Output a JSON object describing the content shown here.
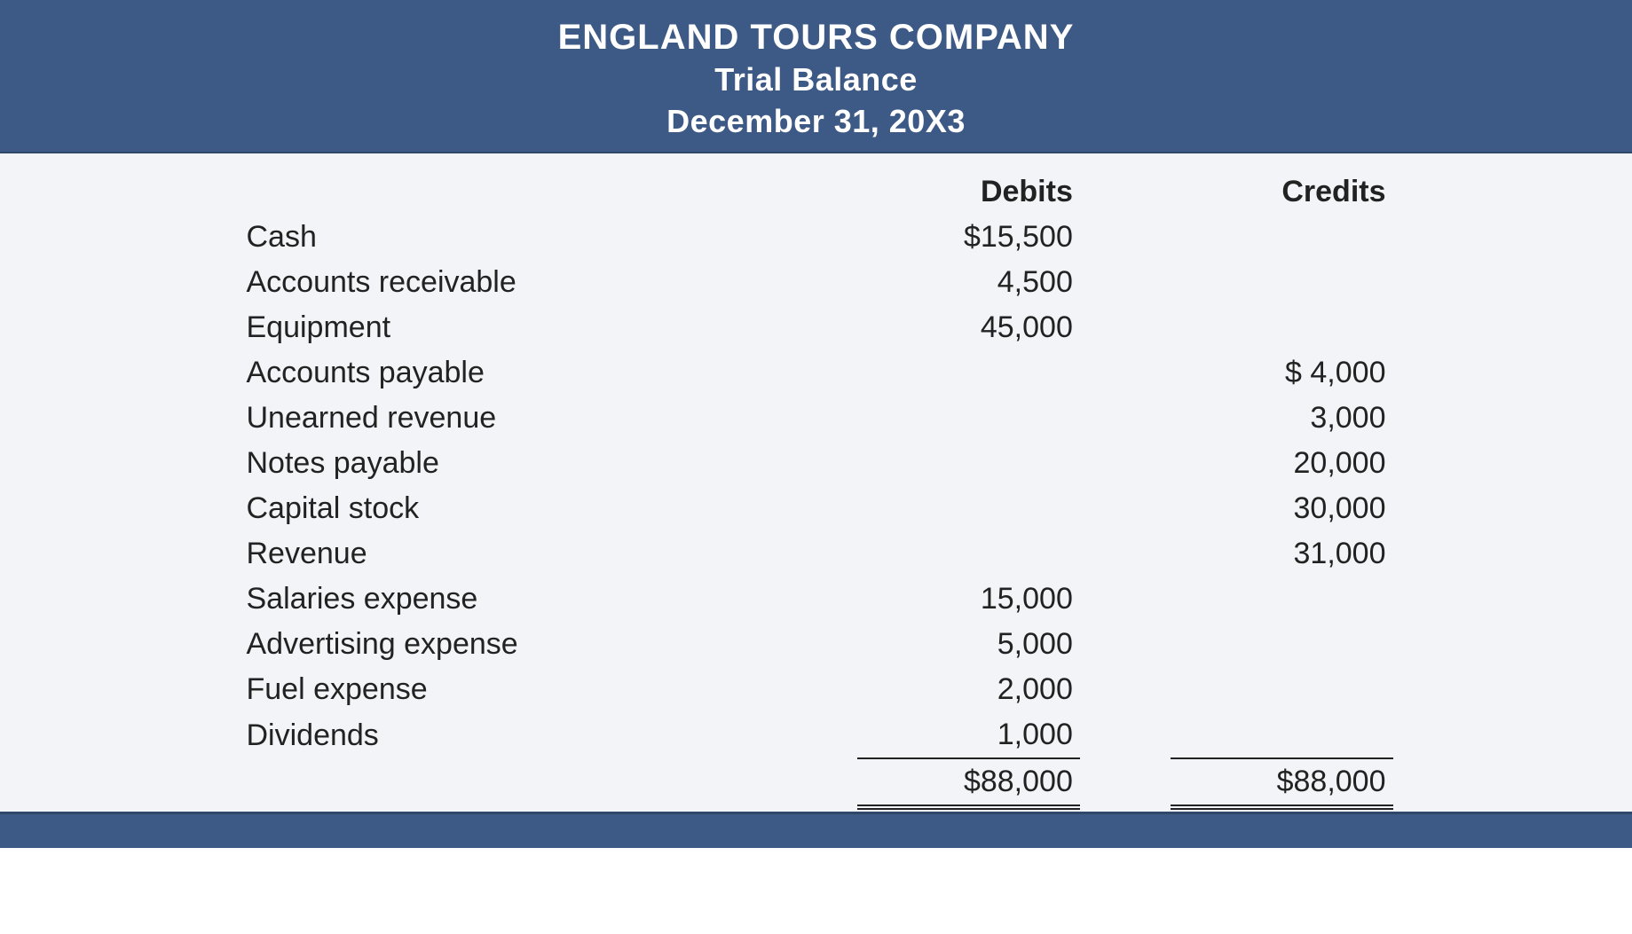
{
  "header": {
    "company": "ENGLAND TOURS COMPANY",
    "title": "Trial Balance",
    "date": "December 31, 20X3"
  },
  "columns": {
    "debits": "Debits",
    "credits": "Credits"
  },
  "rows": [
    {
      "account": "Cash",
      "debit": "$15,500",
      "credit": ""
    },
    {
      "account": "Accounts receivable",
      "debit": "4,500",
      "credit": ""
    },
    {
      "account": "Equipment",
      "debit": "45,000",
      "credit": ""
    },
    {
      "account": "Accounts payable",
      "debit": "",
      "credit": "$  4,000"
    },
    {
      "account": "Unearned revenue",
      "debit": "",
      "credit": "3,000"
    },
    {
      "account": "Notes payable",
      "debit": "",
      "credit": "20,000"
    },
    {
      "account": "Capital stock",
      "debit": "",
      "credit": "30,000"
    },
    {
      "account": "Revenue",
      "debit": "",
      "credit": "31,000"
    },
    {
      "account": "Salaries expense",
      "debit": "15,000",
      "credit": ""
    },
    {
      "account": "Advertising expense",
      "debit": "5,000",
      "credit": ""
    },
    {
      "account": "Fuel expense",
      "debit": "2,000",
      "credit": ""
    },
    {
      "account": "Dividends",
      "debit": "1,000",
      "credit": ""
    }
  ],
  "totals": {
    "debit": "$88,000",
    "credit": "$88,000"
  },
  "style": {
    "type": "table",
    "header_bg": "#3d5a86",
    "header_text_color": "#ffffff",
    "body_bg": "#f2f4f7",
    "rule_color": "#222222",
    "header_font_size_pt": 30,
    "body_font_size_pt": 26,
    "font_family": "Myriad Pro / Helvetica / sans-serif",
    "columns": [
      "account",
      "debit",
      "credit"
    ],
    "column_align": [
      "left",
      "right",
      "right"
    ],
    "last_row_underline": true,
    "totals_double_underline": true
  }
}
